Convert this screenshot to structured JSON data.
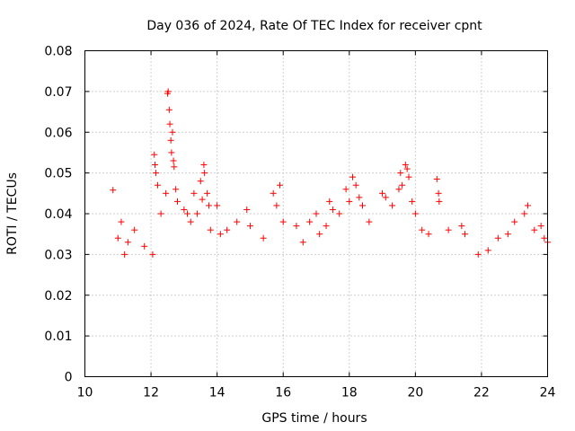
{
  "chart_data": {
    "type": "scatter",
    "title": "Day 036 of 2024, Rate Of TEC Index for receiver cpnt",
    "xlabel": "GPS time / hours",
    "ylabel": "ROTI / TECUs",
    "xlim": [
      10,
      24
    ],
    "ylim": [
      0,
      0.08
    ],
    "x_ticks": [
      10,
      12,
      14,
      16,
      18,
      20,
      22,
      24
    ],
    "y_ticks": [
      0,
      0.01,
      0.02,
      0.03,
      0.04,
      0.05,
      0.06,
      0.07,
      0.08
    ],
    "x_tick_labels": [
      "10",
      "12",
      "14",
      "16",
      "18",
      "20",
      "22",
      "24"
    ],
    "y_tick_labels": [
      "0",
      "0.01",
      "0.02",
      "0.03",
      "0.04",
      "0.05",
      "0.06",
      "0.07",
      "0.08"
    ],
    "grid": true,
    "marker": "+",
    "marker_color": "#ff0000",
    "series": [
      {
        "name": "cpnt",
        "points": [
          [
            10.85,
            0.0458
          ],
          [
            11.0,
            0.034
          ],
          [
            11.1,
            0.038
          ],
          [
            11.2,
            0.03
          ],
          [
            11.3,
            0.033
          ],
          [
            11.5,
            0.036
          ],
          [
            11.8,
            0.032
          ],
          [
            12.05,
            0.03
          ],
          [
            12.1,
            0.0545
          ],
          [
            12.12,
            0.052
          ],
          [
            12.15,
            0.05
          ],
          [
            12.2,
            0.047
          ],
          [
            12.3,
            0.04
          ],
          [
            12.45,
            0.045
          ],
          [
            12.5,
            0.0695
          ],
          [
            12.52,
            0.07
          ],
          [
            12.55,
            0.0655
          ],
          [
            12.57,
            0.062
          ],
          [
            12.6,
            0.058
          ],
          [
            12.62,
            0.055
          ],
          [
            12.65,
            0.06
          ],
          [
            12.68,
            0.053
          ],
          [
            12.7,
            0.0515
          ],
          [
            12.75,
            0.046
          ],
          [
            12.8,
            0.043
          ],
          [
            13.0,
            0.041
          ],
          [
            13.1,
            0.04
          ],
          [
            13.2,
            0.038
          ],
          [
            13.3,
            0.045
          ],
          [
            13.4,
            0.04
          ],
          [
            13.5,
            0.048
          ],
          [
            13.55,
            0.0435
          ],
          [
            13.6,
            0.052
          ],
          [
            13.62,
            0.05
          ],
          [
            13.7,
            0.045
          ],
          [
            13.75,
            0.042
          ],
          [
            13.8,
            0.036
          ],
          [
            14.0,
            0.042
          ],
          [
            14.1,
            0.035
          ],
          [
            14.3,
            0.036
          ],
          [
            14.6,
            0.038
          ],
          [
            14.9,
            0.041
          ],
          [
            15.0,
            0.037
          ],
          [
            15.4,
            0.034
          ],
          [
            15.7,
            0.045
          ],
          [
            15.8,
            0.042
          ],
          [
            15.9,
            0.047
          ],
          [
            16.0,
            0.038
          ],
          [
            16.4,
            0.037
          ],
          [
            16.6,
            0.033
          ],
          [
            16.8,
            0.038
          ],
          [
            17.0,
            0.04
          ],
          [
            17.1,
            0.035
          ],
          [
            17.3,
            0.037
          ],
          [
            17.4,
            0.043
          ],
          [
            17.5,
            0.041
          ],
          [
            17.7,
            0.04
          ],
          [
            17.9,
            0.046
          ],
          [
            18.0,
            0.043
          ],
          [
            18.1,
            0.049
          ],
          [
            18.2,
            0.047
          ],
          [
            18.3,
            0.044
          ],
          [
            18.4,
            0.042
          ],
          [
            18.6,
            0.038
          ],
          [
            19.0,
            0.045
          ],
          [
            19.1,
            0.044
          ],
          [
            19.3,
            0.042
          ],
          [
            19.5,
            0.046
          ],
          [
            19.55,
            0.05
          ],
          [
            19.6,
            0.047
          ],
          [
            19.7,
            0.052
          ],
          [
            19.75,
            0.051
          ],
          [
            19.8,
            0.049
          ],
          [
            19.9,
            0.043
          ],
          [
            20.0,
            0.04
          ],
          [
            20.2,
            0.036
          ],
          [
            20.4,
            0.035
          ],
          [
            20.65,
            0.0485
          ],
          [
            20.7,
            0.045
          ],
          [
            20.72,
            0.043
          ],
          [
            21.0,
            0.036
          ],
          [
            21.4,
            0.037
          ],
          [
            21.5,
            0.035
          ],
          [
            21.9,
            0.03
          ],
          [
            22.2,
            0.031
          ],
          [
            22.5,
            0.034
          ],
          [
            22.8,
            0.035
          ],
          [
            23.0,
            0.038
          ],
          [
            23.3,
            0.04
          ],
          [
            23.4,
            0.042
          ],
          [
            23.6,
            0.036
          ],
          [
            23.8,
            0.037
          ],
          [
            23.9,
            0.034
          ],
          [
            24.0,
            0.033
          ]
        ]
      }
    ]
  }
}
